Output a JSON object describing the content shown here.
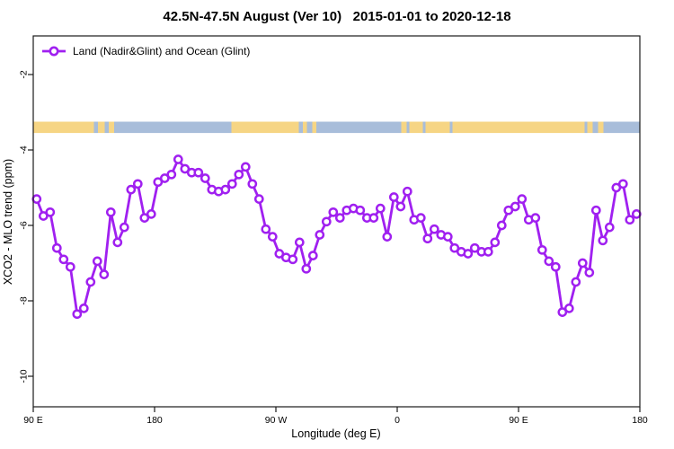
{
  "title": "42.5N-47.5N August (Ver 10)   2015-01-01 to 2020-12-18",
  "legend": {
    "label": "Land (Nadir&Glint) and Ocean (Glint)"
  },
  "axes": {
    "x_label": "Longitude (deg E)",
    "x_ticks": [
      "90 E",
      "180",
      "90 W",
      "0",
      "90 E",
      "180"
    ],
    "x_tick_degrees": [
      90,
      180,
      270,
      360,
      450,
      540
    ],
    "y_label": "XCO2 - MLO trend (ppm)",
    "y_ticks": [
      "-2",
      "-4",
      "-6",
      "-8",
      "-10"
    ],
    "y_tick_values": [
      -2,
      -4,
      -6,
      -8,
      -10
    ]
  },
  "colors": {
    "series": "#a020f0",
    "marker_fill": "#ffffff",
    "land_band": "#f6d584",
    "ocean_band": "#a8bdda",
    "plot_border": "#1a1a1a"
  },
  "chart_data": {
    "type": "line",
    "title": "42.5N-47.5N August (Ver 10)   2015-01-01 to 2020-12-18",
    "xlabel": "Longitude (deg E)",
    "ylabel": "XCO2 - MLO trend (ppm)",
    "x_span_deg_e": [
      90,
      540
    ],
    "x_note": "longitude wraps eastward: 90E -> 180 -> 90W -> 0 -> 90E -> 180, ticks every 90 deg",
    "ylim": [
      -10.8,
      -1.0
    ],
    "grid": false,
    "legend_position": "top-left inside plot",
    "x_lon_start": 92.5,
    "x_lon_step": 5,
    "marker": "open-circle",
    "series": [
      {
        "name": "Land (Nadir&Glint) and Ocean (Glint)",
        "values": [
          -5.3,
          -5.75,
          -5.65,
          -6.6,
          -6.9,
          -7.1,
          -8.35,
          -8.2,
          -7.5,
          -6.95,
          -7.3,
          -5.65,
          -6.45,
          -6.05,
          -5.05,
          -4.9,
          -5.8,
          -5.7,
          -4.85,
          -4.75,
          -4.65,
          -4.25,
          -4.5,
          -4.6,
          -4.6,
          -4.75,
          -5.05,
          -5.1,
          -5.05,
          -4.9,
          -4.65,
          -4.45,
          -4.9,
          -5.3,
          -6.1,
          -6.3,
          -6.75,
          -6.85,
          -6.9,
          -6.45,
          -7.15,
          -6.8,
          -6.25,
          -5.9,
          -5.65,
          -5.8,
          -5.6,
          -5.55,
          -5.6,
          -5.8,
          -5.8,
          -5.55,
          -6.3,
          -5.25,
          -5.5,
          -5.1,
          -5.85,
          -5.8,
          -6.35,
          -6.1,
          -6.25,
          -6.3,
          -6.6,
          -6.7,
          -6.75,
          -6.6,
          -6.7,
          -6.7,
          -6.45,
          -6.0,
          -5.6,
          -5.5,
          -5.3,
          -5.85,
          -5.8,
          -6.65,
          -6.95,
          -7.1,
          -8.3,
          -8.2,
          -7.5,
          -7.0,
          -7.25,
          -5.6,
          -6.4,
          -6.05,
          -5.0,
          -4.9,
          -5.85,
          -5.7
        ]
      }
    ],
    "surface_band": {
      "description": "horizontal strip showing land (tan) vs ocean (blue) along longitude",
      "value_top": -3.25,
      "value_bottom": -3.55,
      "segments": [
        {
          "from_deg": 90,
          "to_deg": 135,
          "type": "land"
        },
        {
          "from_deg": 135,
          "to_deg": 138,
          "type": "ocean"
        },
        {
          "from_deg": 138,
          "to_deg": 143,
          "type": "land"
        },
        {
          "from_deg": 143,
          "to_deg": 146,
          "type": "ocean"
        },
        {
          "from_deg": 146,
          "to_deg": 150,
          "type": "land"
        },
        {
          "from_deg": 150,
          "to_deg": 237,
          "type": "ocean"
        },
        {
          "from_deg": 237,
          "to_deg": 287,
          "type": "land"
        },
        {
          "from_deg": 287,
          "to_deg": 290,
          "type": "ocean"
        },
        {
          "from_deg": 290,
          "to_deg": 293,
          "type": "land"
        },
        {
          "from_deg": 293,
          "to_deg": 297,
          "type": "ocean"
        },
        {
          "from_deg": 297,
          "to_deg": 300,
          "type": "land"
        },
        {
          "from_deg": 300,
          "to_deg": 363,
          "type": "ocean"
        },
        {
          "from_deg": 363,
          "to_deg": 367,
          "type": "land"
        },
        {
          "from_deg": 367,
          "to_deg": 369,
          "type": "ocean"
        },
        {
          "from_deg": 369,
          "to_deg": 379,
          "type": "land"
        },
        {
          "from_deg": 379,
          "to_deg": 381,
          "type": "ocean"
        },
        {
          "from_deg": 381,
          "to_deg": 399,
          "type": "land"
        },
        {
          "from_deg": 399,
          "to_deg": 401,
          "type": "ocean"
        },
        {
          "from_deg": 401,
          "to_deg": 499,
          "type": "land"
        },
        {
          "from_deg": 499,
          "to_deg": 501,
          "type": "ocean"
        },
        {
          "from_deg": 501,
          "to_deg": 505,
          "type": "land"
        },
        {
          "from_deg": 505,
          "to_deg": 509,
          "type": "ocean"
        },
        {
          "from_deg": 509,
          "to_deg": 513,
          "type": "land"
        },
        {
          "from_deg": 513,
          "to_deg": 540,
          "type": "ocean"
        }
      ]
    }
  }
}
